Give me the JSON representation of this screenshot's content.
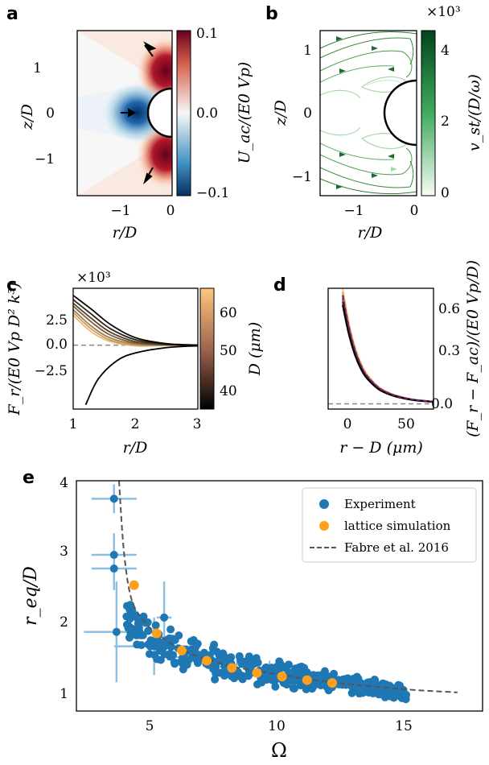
{
  "colors": {
    "blue": "#1f77b4",
    "orange": "#ff9f1a",
    "dashed": "#555555",
    "stream_dark": "#1f6b2e",
    "purple": "#6a1b7a"
  },
  "panels": {
    "a": {
      "label": "a",
      "xlabel": "r/D",
      "ylabel": "z/D",
      "cbar_label": "U_ac/(E0 Vp)",
      "xticks": [
        "−1",
        "0"
      ],
      "yticks": [
        "1",
        "0",
        "−1"
      ],
      "cticks": [
        "0.1",
        "0.0",
        "−0.1"
      ]
    },
    "b": {
      "label": "b",
      "xlabel": "r/D",
      "ylabel": "z/D",
      "cbar_label": "v_st/(D/ω)",
      "cbar_scale": "×10³",
      "xticks": [
        "−1",
        "0"
      ],
      "yticks": [
        "1",
        "0",
        "−1"
      ],
      "cticks": [
        "4",
        "2",
        "0"
      ]
    },
    "c": {
      "label": "c",
      "xlabel": "r/D",
      "ylabel": "F_r/(E0 Vp D² k³)",
      "scale": "×10³",
      "cbar_label": "D (μm)",
      "xticks": [
        "1",
        "2",
        "3"
      ],
      "yticks": [
        "2.5",
        "0.0",
        "−2.5"
      ],
      "cticks": [
        "60",
        "50",
        "40"
      ]
    },
    "d": {
      "label": "d",
      "xlabel": "r − D (μm)",
      "ylabel": "(F_r − F_ac)/(E0 Vp/D)",
      "xticks": [
        "0",
        "50"
      ],
      "yticks": [
        "0.6",
        "0.3",
        "0.0"
      ]
    },
    "e": {
      "label": "e",
      "xlabel": "Ω",
      "ylabel": "r_eq/D",
      "xticks": [
        "5",
        "10",
        "15"
      ],
      "yticks": [
        "4",
        "3",
        "2",
        "1"
      ],
      "legend": [
        {
          "label": "Experiment",
          "marker": "dot",
          "color": "#1f77b4"
        },
        {
          "label": "lattice simulation",
          "marker": "dot",
          "color": "#ff9f1a"
        },
        {
          "label": "Fabre et al. 2016",
          "marker": "dash",
          "color": "#555555"
        }
      ]
    }
  },
  "chart_data": [
    {
      "panel": "a",
      "type": "heatmap",
      "xlim": [
        -1.7,
        0
      ],
      "ylim": [
        -1.7,
        1.7
      ],
      "clim": [
        -0.1,
        0.1
      ]
    },
    {
      "panel": "b",
      "type": "heatmap",
      "xlim": [
        -1.25,
        0
      ],
      "ylim": [
        -1.25,
        1.25
      ],
      "clim": [
        0,
        4500
      ]
    },
    {
      "panel": "c",
      "type": "line",
      "xlim": [
        1,
        3
      ],
      "ylim": [
        -4.5,
        4.0
      ],
      "clim": [
        37,
        64
      ],
      "series": [
        {
          "D": 62,
          "values": [
            [
              1.0,
              2.1
            ],
            [
              1.3,
              0.9
            ],
            [
              1.6,
              0.25
            ],
            [
              2.0,
              -0.05
            ],
            [
              2.5,
              -0.02
            ],
            [
              3.0,
              0
            ]
          ]
        },
        {
          "D": 58,
          "values": [
            [
              1.0,
              2.3
            ],
            [
              1.3,
              1.1
            ],
            [
              1.6,
              0.35
            ],
            [
              2.0,
              0.0
            ],
            [
              2.5,
              0
            ],
            [
              3.0,
              0
            ]
          ]
        },
        {
          "D": 54,
          "values": [
            [
              1.0,
              2.5
            ],
            [
              1.3,
              1.3
            ],
            [
              1.6,
              0.5
            ],
            [
              2.0,
              0.08
            ],
            [
              2.5,
              0
            ],
            [
              3.0,
              0
            ]
          ]
        },
        {
          "D": 50,
          "values": [
            [
              1.0,
              2.75
            ],
            [
              1.3,
              1.6
            ],
            [
              1.6,
              0.7
            ],
            [
              2.0,
              0.15
            ],
            [
              2.5,
              0.02
            ],
            [
              3.0,
              0
            ]
          ]
        },
        {
          "D": 46,
          "values": [
            [
              1.0,
              2.95
            ],
            [
              1.3,
              1.85
            ],
            [
              1.6,
              0.9
            ],
            [
              2.0,
              0.25
            ],
            [
              2.5,
              0.04
            ],
            [
              3.0,
              0
            ]
          ]
        },
        {
          "D": 42,
          "values": [
            [
              1.0,
              3.2
            ],
            [
              1.3,
              2.15
            ],
            [
              1.6,
              1.15
            ],
            [
              2.0,
              0.38
            ],
            [
              2.5,
              0.06
            ],
            [
              3.0,
              0
            ]
          ]
        },
        {
          "D": 38,
          "values": [
            [
              1.0,
              3.5
            ],
            [
              1.3,
              2.5
            ],
            [
              1.6,
              1.45
            ],
            [
              2.0,
              0.52
            ],
            [
              2.5,
              0.1
            ],
            [
              3.0,
              0.01
            ]
          ]
        },
        {
          "D": "lower",
          "values": [
            [
              1.2,
              -4.2
            ],
            [
              1.4,
              -2.4
            ],
            [
              1.7,
              -1.1
            ],
            [
              2.0,
              -0.55
            ],
            [
              2.5,
              -0.17
            ],
            [
              3.0,
              -0.05
            ]
          ]
        }
      ]
    },
    {
      "panel": "d",
      "type": "line",
      "xlim": [
        -12,
        75
      ],
      "ylim": [
        -0.03,
        0.66
      ],
      "values": [
        [
          0,
          0.62
        ],
        [
          5,
          0.44
        ],
        [
          10,
          0.31
        ],
        [
          15,
          0.22
        ],
        [
          20,
          0.16
        ],
        [
          30,
          0.09
        ],
        [
          40,
          0.055
        ],
        [
          50,
          0.035
        ],
        [
          60,
          0.022
        ],
        [
          75,
          0.012
        ]
      ]
    },
    {
      "panel": "e",
      "type": "scatter",
      "xlim": [
        1.8,
        18
      ],
      "ylim": [
        0.8,
        4.0
      ],
      "series": [
        {
          "name": "lattice simulation",
          "x": [
            4.1,
            5.0,
            6.0,
            7.0,
            8.0,
            9.0,
            10.0,
            11.0,
            12.0
          ],
          "y": [
            2.55,
            1.88,
            1.64,
            1.5,
            1.4,
            1.33,
            1.28,
            1.23,
            1.19
          ]
        },
        {
          "name": "Fabre et al. 2016",
          "x": [
            3.5,
            3.7,
            4.0,
            4.5,
            5.0,
            6.0,
            7.0,
            8.0,
            10.0,
            12.0,
            15.0,
            17.0
          ],
          "y": [
            4.0,
            3.0,
            2.35,
            2.05,
            1.88,
            1.65,
            1.52,
            1.42,
            1.3,
            1.2,
            1.1,
            1.06
          ]
        },
        {
          "name": "Experiment",
          "trend": {
            "x": [
              3.8,
              5,
              6,
              8,
              10,
              12,
              15
            ],
            "y": [
              2.05,
              1.78,
              1.6,
              1.42,
              1.3,
              1.2,
              1.06
            ]
          },
          "outliers": [
            {
              "x": 3.3,
              "y": 3.75,
              "xerr": 0.9,
              "yerr": 0.2
            },
            {
              "x": 3.3,
              "y": 2.97,
              "xerr": 0.9,
              "yerr": 0.3
            },
            {
              "x": 3.3,
              "y": 2.78,
              "xerr": 0.9,
              "yerr": 0.3
            },
            {
              "x": 3.4,
              "y": 1.9,
              "xerr": 1.3,
              "yerr": 0.7
            },
            {
              "x": 5.3,
              "y": 2.1,
              "xerr": 0.3,
              "yerr": 0.5
            },
            {
              "x": 4.9,
              "y": 1.7,
              "xerr": 1.6,
              "yerr": 0.4
            }
          ]
        }
      ]
    }
  ]
}
